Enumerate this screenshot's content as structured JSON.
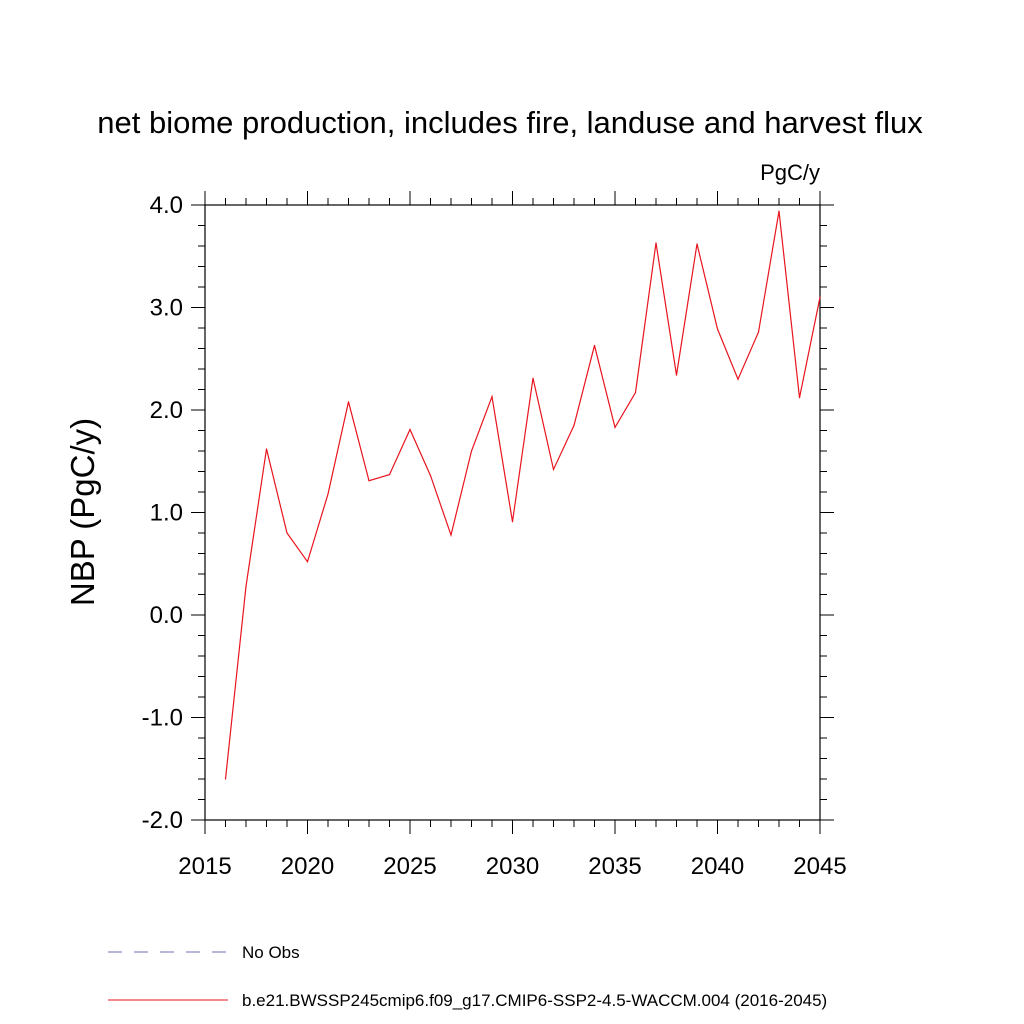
{
  "chart_data": {
    "type": "line",
    "title": "net biome production, includes fire, landuse and harvest flux",
    "units": "PgC/y",
    "ylabel": "NBP  (PgC/y)",
    "xlabel": "",
    "xlim": [
      2015,
      2045
    ],
    "ylim": [
      -2.0,
      4.0
    ],
    "xticks": [
      2015,
      2020,
      2025,
      2030,
      2035,
      2040,
      2045
    ],
    "xtick_labels": [
      "2015",
      "2020",
      "2025",
      "2030",
      "2035",
      "2040",
      "2045"
    ],
    "yticks": [
      4.0,
      3.0,
      2.0,
      1.0,
      0.0,
      -1.0,
      -2.0
    ],
    "ytick_labels": [
      "4.0",
      "3.0",
      "2.0",
      "1.0",
      "0.0",
      "-1.0",
      "-2.0"
    ],
    "grid": false,
    "series": [
      {
        "name": "b.e21.BWSSP245cmip6.f09_g17.CMIP6-SSP2-4.5-WACCM.004 (2016-2045)",
        "color": "#e8141e",
        "style": "solid",
        "x": [
          2016,
          2017,
          2018,
          2019,
          2020,
          2021,
          2022,
          2023,
          2024,
          2025,
          2026,
          2027,
          2028,
          2029,
          2030,
          2031,
          2032,
          2033,
          2034,
          2035,
          2036,
          2037,
          2038,
          2039,
          2040,
          2041,
          2042,
          2043,
          2044,
          2045
        ],
        "values": [
          -1.6,
          0.28,
          1.62,
          0.8,
          0.52,
          1.18,
          2.08,
          1.31,
          1.37,
          1.81,
          1.36,
          0.78,
          1.6,
          2.13,
          0.91,
          2.31,
          1.42,
          1.85,
          2.63,
          1.83,
          2.17,
          3.63,
          2.34,
          3.62,
          2.79,
          2.3,
          2.76,
          3.94,
          2.12,
          3.1
        ]
      }
    ],
    "legend": [
      {
        "label": "No Obs",
        "color": "#6f6fb8",
        "style": "dashed"
      },
      {
        "label": "b.e21.BWSSP245cmip6.f09_g17.CMIP6-SSP2-4.5-WACCM.004 (2016-2045)",
        "color": "#e8141e",
        "style": "solid"
      }
    ]
  }
}
